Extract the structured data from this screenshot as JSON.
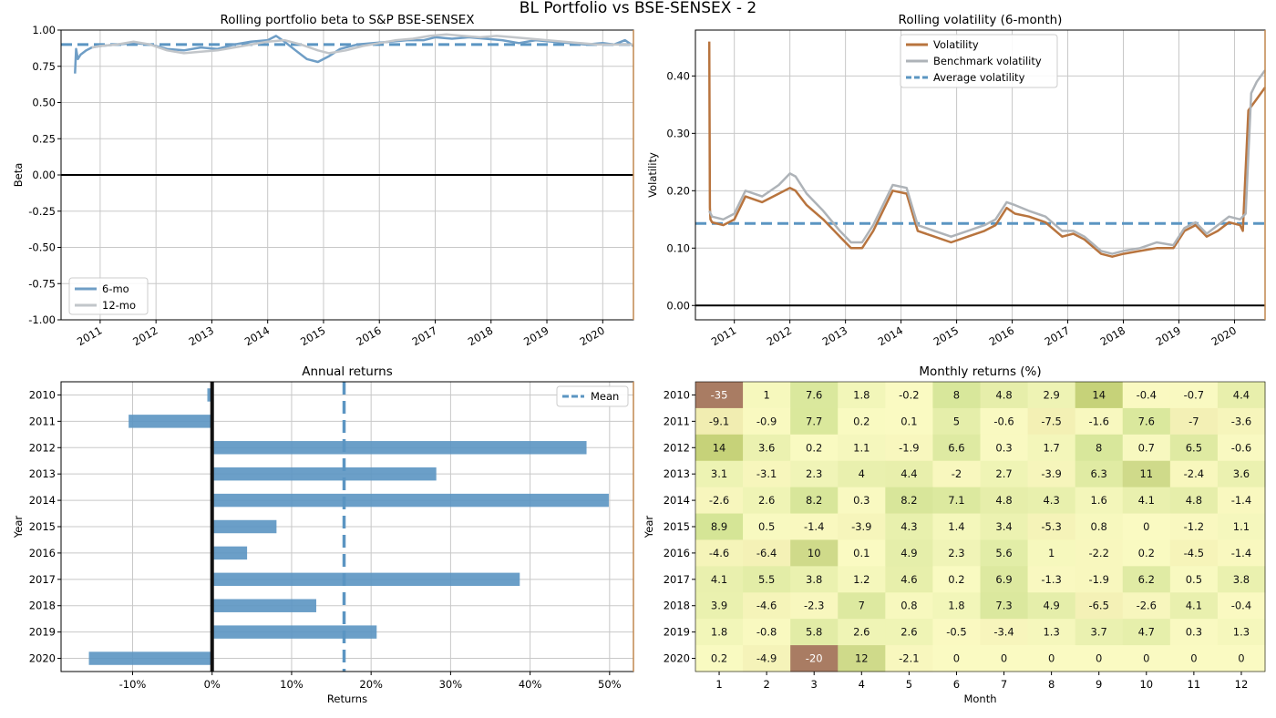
{
  "suptitle": "BL Portfolio vs BSE-SENSEX - 2",
  "colors": {
    "blue": "#5b95c2",
    "blue_light": "#8fb3d1",
    "gray": "#aab4bd",
    "brown": "#b8743e",
    "frame": "#c0874f",
    "grid": "#c8c8c8"
  },
  "chart_data": [
    {
      "id": "beta",
      "type": "line",
      "title": "Rolling portfolio beta to S&P BSE-SENSEX",
      "xlabel": "",
      "ylabel": "Beta",
      "xlim": [
        2010.3,
        2020.55
      ],
      "ylim": [
        -1.0,
        1.0
      ],
      "x_ticks": [
        "2011",
        "2012",
        "2013",
        "2014",
        "2015",
        "2016",
        "2017",
        "2018",
        "2019",
        "2020"
      ],
      "y_ticks": [
        "-1.00",
        "-0.75",
        "-0.50",
        "-0.25",
        "0.00",
        "0.25",
        "0.50",
        "0.75",
        "1.00"
      ],
      "grid": true,
      "legend_position": "lower-left",
      "hlines": [
        {
          "y": 0.0,
          "style": "solid",
          "color": "#000000"
        },
        {
          "y": 0.9,
          "style": "dashed",
          "color": "#5b95c2",
          "label": ""
        }
      ],
      "series": [
        {
          "name": "6-mo",
          "color": "#6f9ec6",
          "x": [
            2010.55,
            2010.57,
            2010.6,
            2010.65,
            2010.75,
            2010.85,
            2011.0,
            2011.3,
            2011.6,
            2011.9,
            2012.2,
            2012.5,
            2012.8,
            2013.1,
            2013.4,
            2013.7,
            2014.0,
            2014.15,
            2014.3,
            2014.5,
            2014.7,
            2014.9,
            2015.1,
            2015.3,
            2015.6,
            2015.9,
            2016.2,
            2016.5,
            2016.8,
            2017.0,
            2017.3,
            2017.6,
            2017.9,
            2018.2,
            2018.5,
            2018.8,
            2019.1,
            2019.4,
            2019.7,
            2020.0,
            2020.2,
            2020.4,
            2020.55
          ],
          "values": [
            0.7,
            0.87,
            0.8,
            0.83,
            0.86,
            0.88,
            0.89,
            0.9,
            0.91,
            0.9,
            0.87,
            0.86,
            0.88,
            0.87,
            0.9,
            0.92,
            0.93,
            0.96,
            0.92,
            0.86,
            0.8,
            0.78,
            0.82,
            0.87,
            0.9,
            0.91,
            0.92,
            0.93,
            0.93,
            0.95,
            0.94,
            0.95,
            0.94,
            0.93,
            0.91,
            0.93,
            0.92,
            0.91,
            0.9,
            0.91,
            0.9,
            0.93,
            0.89
          ]
        },
        {
          "name": "12-mo",
          "color": "#c2c6ca",
          "x": [
            2010.85,
            2011.0,
            2011.3,
            2011.6,
            2011.9,
            2012.2,
            2012.5,
            2012.8,
            2013.1,
            2013.4,
            2013.7,
            2014.0,
            2014.3,
            2014.6,
            2014.9,
            2015.1,
            2015.4,
            2015.7,
            2016.0,
            2016.3,
            2016.6,
            2016.9,
            2017.2,
            2017.5,
            2017.8,
            2018.1,
            2018.4,
            2018.7,
            2019.0,
            2019.3,
            2019.6,
            2019.9,
            2020.2,
            2020.55
          ],
          "values": [
            0.88,
            0.89,
            0.9,
            0.92,
            0.9,
            0.86,
            0.84,
            0.85,
            0.86,
            0.88,
            0.9,
            0.92,
            0.93,
            0.9,
            0.86,
            0.84,
            0.86,
            0.89,
            0.91,
            0.93,
            0.94,
            0.96,
            0.97,
            0.96,
            0.95,
            0.96,
            0.95,
            0.94,
            0.93,
            0.92,
            0.91,
            0.9,
            0.9,
            0.9
          ]
        }
      ]
    },
    {
      "id": "vol",
      "type": "line",
      "title": "Rolling volatility (6-month)",
      "xlabel": "",
      "ylabel": "Volatility",
      "xlim": [
        2010.3,
        2020.55
      ],
      "ylim": [
        -0.025,
        0.48
      ],
      "x_ticks": [
        "2011",
        "2012",
        "2013",
        "2014",
        "2015",
        "2016",
        "2017",
        "2018",
        "2019",
        "2020"
      ],
      "y_ticks": [
        "0.00",
        "0.10",
        "0.20",
        "0.30",
        "0.40"
      ],
      "grid": true,
      "legend_position": "upper-center",
      "legend": [
        "Volatility",
        "Benchmark volatility",
        "Average volatility"
      ],
      "hlines": [
        {
          "y": 0.0,
          "style": "solid",
          "color": "#000000"
        },
        {
          "y": 0.143,
          "style": "dashed",
          "color": "#5b95c2",
          "label": "Average volatility"
        }
      ],
      "series": [
        {
          "name": "Volatility",
          "color": "#b8743e",
          "x": [
            2010.55,
            2010.56,
            2010.57,
            2010.6,
            2010.8,
            2011.0,
            2011.2,
            2011.5,
            2011.8,
            2012.0,
            2012.1,
            2012.3,
            2012.6,
            2012.9,
            2013.1,
            2013.3,
            2013.5,
            2013.7,
            2013.85,
            2014.1,
            2014.3,
            2014.6,
            2014.9,
            2015.2,
            2015.5,
            2015.7,
            2015.9,
            2016.05,
            2016.3,
            2016.6,
            2016.9,
            2017.1,
            2017.3,
            2017.6,
            2017.8,
            2018.0,
            2018.3,
            2018.6,
            2018.9,
            2019.1,
            2019.3,
            2019.5,
            2019.7,
            2019.9,
            2020.1,
            2020.15,
            2020.25,
            2020.4,
            2020.55
          ],
          "values": [
            0.46,
            0.17,
            0.15,
            0.145,
            0.14,
            0.15,
            0.19,
            0.18,
            0.195,
            0.205,
            0.2,
            0.175,
            0.15,
            0.12,
            0.1,
            0.1,
            0.13,
            0.17,
            0.2,
            0.195,
            0.13,
            0.12,
            0.11,
            0.12,
            0.13,
            0.14,
            0.17,
            0.16,
            0.155,
            0.145,
            0.12,
            0.125,
            0.115,
            0.09,
            0.085,
            0.09,
            0.095,
            0.1,
            0.1,
            0.13,
            0.14,
            0.12,
            0.13,
            0.145,
            0.14,
            0.13,
            0.34,
            0.36,
            0.38
          ]
        },
        {
          "name": "Benchmark volatility",
          "color": "#aeb3b8",
          "x": [
            2010.55,
            2010.6,
            2010.8,
            2011.0,
            2011.2,
            2011.5,
            2011.8,
            2012.0,
            2012.1,
            2012.3,
            2012.6,
            2012.9,
            2013.1,
            2013.3,
            2013.5,
            2013.7,
            2013.85,
            2014.1,
            2014.3,
            2014.6,
            2014.9,
            2015.2,
            2015.5,
            2015.7,
            2015.9,
            2016.05,
            2016.3,
            2016.6,
            2016.9,
            2017.1,
            2017.3,
            2017.6,
            2017.8,
            2018.0,
            2018.3,
            2018.6,
            2018.9,
            2019.1,
            2019.3,
            2019.5,
            2019.7,
            2019.9,
            2020.1,
            2020.2,
            2020.3,
            2020.4,
            2020.55
          ],
          "values": [
            0.165,
            0.155,
            0.15,
            0.16,
            0.2,
            0.19,
            0.21,
            0.23,
            0.225,
            0.195,
            0.165,
            0.13,
            0.11,
            0.11,
            0.14,
            0.18,
            0.21,
            0.205,
            0.14,
            0.13,
            0.12,
            0.13,
            0.14,
            0.15,
            0.18,
            0.175,
            0.165,
            0.155,
            0.13,
            0.13,
            0.12,
            0.095,
            0.09,
            0.095,
            0.1,
            0.11,
            0.105,
            0.135,
            0.145,
            0.125,
            0.14,
            0.155,
            0.15,
            0.16,
            0.37,
            0.39,
            0.41
          ]
        }
      ]
    },
    {
      "id": "annual",
      "type": "bar",
      "orientation": "horizontal",
      "title": "Annual returns",
      "xlabel": "Returns",
      "ylabel": "Year",
      "xlim": [
        -19,
        53
      ],
      "x_ticks": [
        "-10%",
        "0%",
        "10%",
        "20%",
        "30%",
        "40%",
        "50%"
      ],
      "grid": true,
      "legend": [
        "Mean"
      ],
      "legend_position": "upper-right",
      "mean": 16.6,
      "categories": [
        "2010",
        "2011",
        "2012",
        "2013",
        "2014",
        "2015",
        "2016",
        "2017",
        "2018",
        "2019",
        "2020"
      ],
      "values": [
        -0.6,
        -10.5,
        47.1,
        28.2,
        49.9,
        8.1,
        4.4,
        38.7,
        13.1,
        20.7,
        -15.5
      ]
    },
    {
      "id": "monthly",
      "type": "heatmap",
      "title": "Monthly returns (%)",
      "xlabel": "Month",
      "ylabel": "Year",
      "x_ticks": [
        "1",
        "2",
        "3",
        "4",
        "5",
        "6",
        "7",
        "8",
        "9",
        "10",
        "11",
        "12"
      ],
      "y_ticks": [
        "2010",
        "2011",
        "2012",
        "2013",
        "2014",
        "2015",
        "2016",
        "2017",
        "2018",
        "2019",
        "2020"
      ],
      "values": [
        [
          "-35",
          "1",
          "7.6",
          "1.8",
          "-0.2",
          "8",
          "4.8",
          "2.9",
          "14",
          "-0.4",
          "-0.7",
          "4.4"
        ],
        [
          "-9.1",
          "-0.9",
          "7.7",
          "0.2",
          "0.1",
          "5",
          "-0.6",
          "-7.5",
          "-1.6",
          "7.6",
          "-7",
          "-3.6"
        ],
        [
          "14",
          "3.6",
          "0.2",
          "1.1",
          "-1.9",
          "6.6",
          "0.3",
          "1.7",
          "8",
          "0.7",
          "6.5",
          "-0.6"
        ],
        [
          "3.1",
          "-3.1",
          "2.3",
          "4",
          "4.4",
          "-2",
          "2.7",
          "-3.9",
          "6.3",
          "11",
          "-2.4",
          "3.6"
        ],
        [
          "-2.6",
          "2.6",
          "8.2",
          "0.3",
          "8.2",
          "7.1",
          "4.8",
          "4.3",
          "1.6",
          "4.1",
          "4.8",
          "-1.4"
        ],
        [
          "8.9",
          "0.5",
          "-1.4",
          "-3.9",
          "4.3",
          "1.4",
          "3.4",
          "-5.3",
          "0.8",
          "0",
          "-1.2",
          "1.1"
        ],
        [
          "-4.6",
          "-6.4",
          "10",
          "0.1",
          "4.9",
          "2.3",
          "5.6",
          "1",
          "-2.2",
          "0.2",
          "-4.5",
          "-1.4"
        ],
        [
          "4.1",
          "5.5",
          "3.8",
          "1.2",
          "4.6",
          "0.2",
          "6.9",
          "-1.3",
          "-1.9",
          "6.2",
          "0.5",
          "3.8"
        ],
        [
          "3.9",
          "-4.6",
          "-2.3",
          "7",
          "0.8",
          "1.8",
          "7.3",
          "4.9",
          "-6.5",
          "-2.6",
          "4.1",
          "-0.4"
        ],
        [
          "1.8",
          "-0.8",
          "5.8",
          "2.6",
          "2.6",
          "-0.5",
          "-3.4",
          "1.3",
          "3.7",
          "4.7",
          "0.3",
          "1.3"
        ],
        [
          "0.2",
          "-4.9",
          "-20",
          "12",
          "-2.1",
          "0",
          "0",
          "0",
          "0",
          "0",
          "0",
          "0"
        ]
      ]
    }
  ]
}
